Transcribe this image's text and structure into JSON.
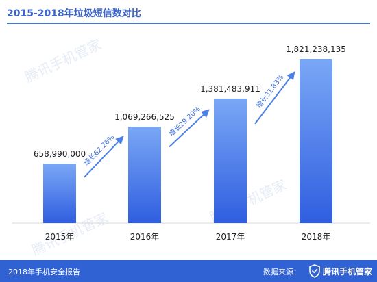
{
  "header": {
    "title": "2015-2018年垃圾短信数对比"
  },
  "footer": {
    "report_name": "2018年手机安全报告",
    "source_label": "数据来源：",
    "brand": "腾讯手机管家",
    "logo_icon": "tencent-shield-icon"
  },
  "watermark": {
    "text": "腾讯手机管家"
  },
  "colors": {
    "bar_top": "#7aa7f5",
    "bar_bottom": "#2f5ee0",
    "arrow": "#4a80e8",
    "growth_text": "#3d6fd8",
    "title": "#3a63c9",
    "footer": "#3162d4"
  },
  "chart_data": {
    "type": "bar",
    "title": "2015-2018年垃圾短信数对比",
    "categories": [
      "2015年",
      "2016年",
      "2017年",
      "2018年"
    ],
    "values": [
      658990000,
      1069266525,
      1381483911,
      1821238135
    ],
    "value_labels": [
      "658,990,000",
      "1,069,266,525",
      "1,381,483,911",
      "1,821,238,135"
    ],
    "growth_labels": [
      "增长62.26%",
      "增长29.20%",
      "增长31.83%"
    ],
    "ylim": [
      0,
      1821238135
    ],
    "grid": false,
    "legend": "none"
  }
}
